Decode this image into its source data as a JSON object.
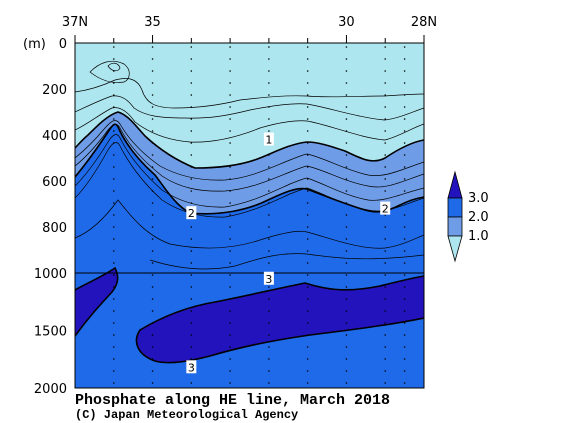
{
  "chart_data": {
    "type": "heatmap",
    "title": "Phosphate along HE line, March 2018",
    "credit": "(C) Japan Meteorological Agency",
    "y_unit": "(m)",
    "x_ticks": [
      {
        "value": 37,
        "label": "37N"
      },
      {
        "value": 35,
        "label": "35"
      },
      {
        "value": 30,
        "label": "30"
      },
      {
        "value": 28,
        "label": "28N"
      }
    ],
    "x_range": [
      37,
      28
    ],
    "y_ticks_upper": [
      0,
      200,
      400,
      600,
      800,
      1000
    ],
    "y_ticks_lower": [
      1500,
      2000
    ],
    "y_range_upper": [
      0,
      1000
    ],
    "y_range_lower": [
      1000,
      2000
    ],
    "contour_labels": [
      {
        "text": "1",
        "lat": 32.0,
        "depth": 420
      },
      {
        "text": "2",
        "lat": 34.0,
        "depth": 740
      },
      {
        "text": "2",
        "lat": 29.0,
        "depth": 720
      },
      {
        "text": "3",
        "lat": 32.0,
        "depth": 1050
      },
      {
        "text": "3",
        "lat": 34.0,
        "depth": 1820
      }
    ],
    "levels": [
      {
        "min": 0.0,
        "max": 1.0,
        "color": "#aee6ef"
      },
      {
        "min": 1.0,
        "max": 2.0,
        "color": "#6f9ce6"
      },
      {
        "min": 2.0,
        "max": 3.0,
        "color": "#1f6ae8"
      },
      {
        "min": 3.0,
        "max": 3.5,
        "color": "#2313bd"
      }
    ],
    "legend_labels": [
      "3.0",
      "2.0",
      "1.0"
    ]
  }
}
